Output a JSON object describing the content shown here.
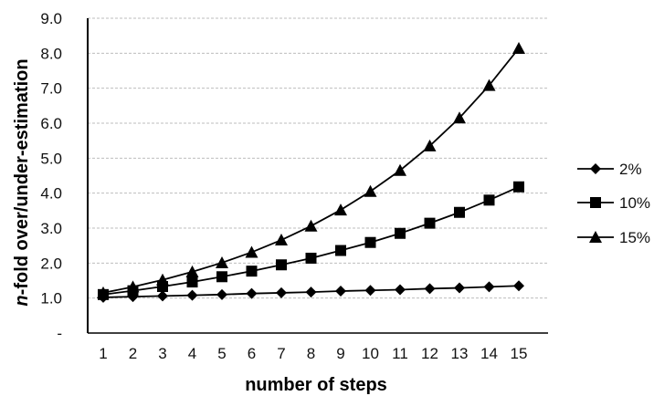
{
  "chart_data": {
    "type": "line",
    "x": [
      1,
      2,
      3,
      4,
      5,
      6,
      7,
      8,
      9,
      10,
      11,
      12,
      13,
      14,
      15
    ],
    "x_tick_labels": [
      "1",
      "2",
      "3",
      "4",
      "5",
      "6",
      "7",
      "8",
      "9",
      "10",
      "11",
      "12",
      "13",
      "14",
      "15"
    ],
    "y_tick_labels": [
      "-",
      "1.0",
      "2.0",
      "3.0",
      "4.0",
      "5.0",
      "6.0",
      "7.0",
      "8.0",
      "9.0"
    ],
    "ylim": [
      0,
      9
    ],
    "xlabel": "number of steps",
    "ylabel_italic": "n",
    "ylabel_rest": "-fold over/under-estimation",
    "grid": "horizontal dashed",
    "legend_position": "right",
    "series": [
      {
        "name": "2%",
        "marker": "diamond",
        "values": [
          1.02,
          1.04,
          1.06,
          1.08,
          1.1,
          1.13,
          1.15,
          1.17,
          1.2,
          1.22,
          1.24,
          1.27,
          1.29,
          1.32,
          1.35
        ]
      },
      {
        "name": "10%",
        "marker": "square",
        "values": [
          1.1,
          1.21,
          1.33,
          1.46,
          1.61,
          1.77,
          1.95,
          2.14,
          2.36,
          2.59,
          2.85,
          3.14,
          3.45,
          3.8,
          4.18
        ]
      },
      {
        "name": "15%",
        "marker": "triangle",
        "values": [
          1.15,
          1.32,
          1.52,
          1.75,
          2.01,
          2.31,
          2.66,
          3.06,
          3.52,
          4.05,
          4.65,
          5.35,
          6.15,
          7.08,
          8.14
        ]
      }
    ]
  }
}
